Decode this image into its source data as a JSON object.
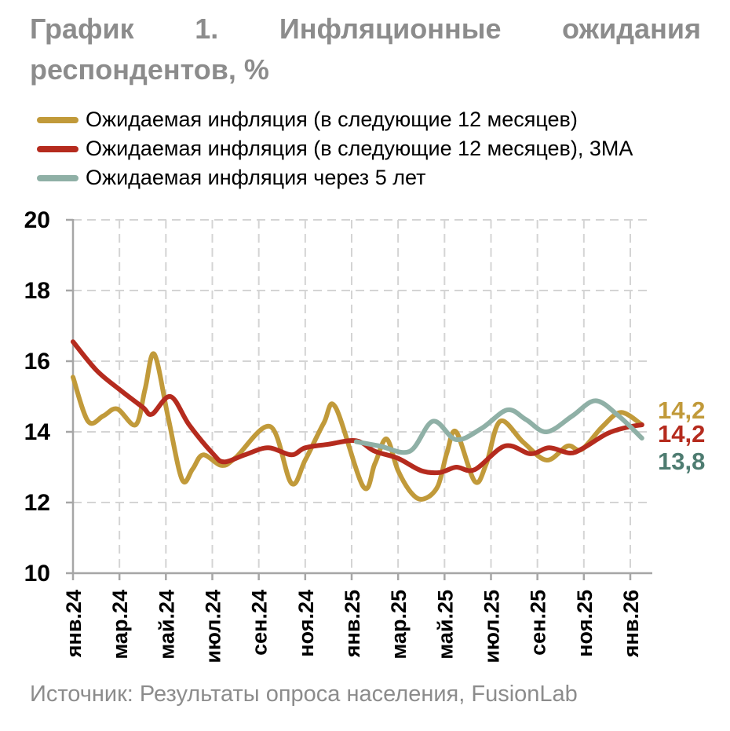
{
  "title": {
    "line1_words": [
      "График",
      "1.",
      "Инфляционные",
      "ожидания"
    ],
    "line2": "респондентов, %",
    "full": "График 1. Инфляционные ожидания респондентов, %"
  },
  "palette": {
    "title_gray": "#8C8C8C",
    "axis_gray": "#A6A6A6",
    "grid_gray": "#D4D4D4",
    "text_black": "#000000"
  },
  "source_note": "Источник: Результаты опроса населения, FusionLab",
  "chart_data": {
    "type": "line",
    "title": "График 1. Инфляционные ожидания респондентов, %",
    "grid": true,
    "legend_position": "top-left",
    "y_axis": {
      "min": 10,
      "max": 20,
      "ticks": [
        20,
        18,
        16,
        14,
        12,
        10
      ]
    },
    "x_axis": {
      "unit": "months since янв.24",
      "tick_positions_months": [
        0,
        2,
        4,
        6,
        8,
        10,
        12,
        14,
        16,
        18,
        20,
        22,
        24
      ],
      "tick_labels": [
        "янв.24",
        "мар.24",
        "май.24",
        "июл.24",
        "сен.24",
        "ноя.24",
        "янв.25",
        "мар.25",
        "май.25",
        "июл.25",
        "сен.25",
        "ноя.25",
        "янв.26"
      ]
    },
    "series": [
      {
        "name": "Ожидаемая инфляция (в следующие 12 месяцев)",
        "color": "#C19A3A",
        "end_label": {
          "text": "14,2",
          "color": "#C19A3A"
        },
        "points": [
          [
            0,
            15.55
          ],
          [
            0.65,
            14.3
          ],
          [
            1.3,
            14.45
          ],
          [
            1.9,
            14.65
          ],
          [
            2.7,
            14.2
          ],
          [
            3.1,
            15.2
          ],
          [
            3.5,
            16.2
          ],
          [
            4.1,
            14.4
          ],
          [
            4.7,
            12.65
          ],
          [
            5.15,
            12.95
          ],
          [
            5.6,
            13.35
          ],
          [
            6.4,
            13.05
          ],
          [
            7,
            13.27
          ],
          [
            8.5,
            14.15
          ],
          [
            9.4,
            12.55
          ],
          [
            10,
            13.2
          ],
          [
            10.8,
            14.25
          ],
          [
            11.3,
            14.7
          ],
          [
            12.5,
            12.45
          ],
          [
            13,
            13.1
          ],
          [
            13.5,
            13.8
          ],
          [
            14,
            12.9
          ],
          [
            14.6,
            12.25
          ],
          [
            15.1,
            12.1
          ],
          [
            15.7,
            12.45
          ],
          [
            16.1,
            13.4
          ],
          [
            16.5,
            14.0
          ],
          [
            17.3,
            12.6
          ],
          [
            17.8,
            13.1
          ],
          [
            18.4,
            14.3
          ],
          [
            19.4,
            13.7
          ],
          [
            20.4,
            13.2
          ],
          [
            21.3,
            13.6
          ],
          [
            21.9,
            13.5
          ],
          [
            22.8,
            14.15
          ],
          [
            23.6,
            14.55
          ],
          [
            24.5,
            14.2
          ]
        ]
      },
      {
        "name": "Ожидаемая инфляция (в следующие 12 месяцев), 3МА",
        "color": "#B52B1E",
        "end_label": {
          "text": "14,2",
          "color": "#B52B1E"
        },
        "points": [
          [
            0,
            16.55
          ],
          [
            1,
            15.75
          ],
          [
            2,
            15.2
          ],
          [
            3,
            14.7
          ],
          [
            3.4,
            14.5
          ],
          [
            4.2,
            15.0
          ],
          [
            5,
            14.2
          ],
          [
            6,
            13.4
          ],
          [
            6.5,
            13.15
          ],
          [
            7.4,
            13.35
          ],
          [
            8.4,
            13.55
          ],
          [
            9.4,
            13.35
          ],
          [
            10,
            13.55
          ],
          [
            11,
            13.65
          ],
          [
            12.2,
            13.75
          ],
          [
            13,
            13.45
          ],
          [
            14,
            13.25
          ],
          [
            15,
            12.9
          ],
          [
            15.8,
            12.85
          ],
          [
            16.5,
            13.0
          ],
          [
            17.3,
            12.93
          ],
          [
            18.6,
            13.6
          ],
          [
            19.7,
            13.38
          ],
          [
            20.5,
            13.55
          ],
          [
            21.4,
            13.4
          ],
          [
            22,
            13.55
          ],
          [
            23,
            13.95
          ],
          [
            23.8,
            14.12
          ],
          [
            24.5,
            14.2
          ]
        ]
      },
      {
        "name": "Ожидаемая инфляция через 5 лет",
        "color": "#8FB0A6",
        "end_label": {
          "text": "13,8",
          "color": "#4E7C71"
        },
        "points": [
          [
            12.2,
            13.72
          ],
          [
            13.2,
            13.6
          ],
          [
            14.5,
            13.45
          ],
          [
            15.5,
            14.3
          ],
          [
            16.5,
            13.78
          ],
          [
            17.6,
            14.1
          ],
          [
            18.7,
            14.62
          ],
          [
            19.5,
            14.35
          ],
          [
            20.4,
            14.0
          ],
          [
            21.5,
            14.45
          ],
          [
            22.5,
            14.88
          ],
          [
            23.5,
            14.45
          ],
          [
            24.5,
            13.82
          ]
        ]
      }
    ]
  }
}
